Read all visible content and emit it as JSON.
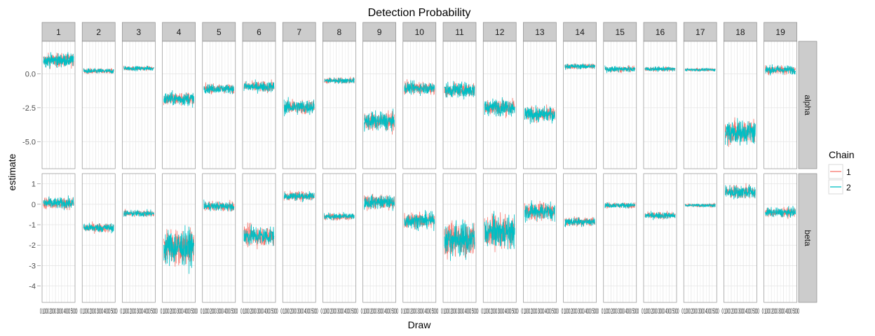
{
  "chart_data": {
    "type": "line",
    "title": "Detection Probability",
    "xlabel": "Draw",
    "ylabel": "estimate",
    "facet_cols": [
      "1",
      "2",
      "3",
      "4",
      "5",
      "6",
      "7",
      "8",
      "9",
      "10",
      "11",
      "12",
      "13",
      "14",
      "15",
      "16",
      "17",
      "18",
      "19"
    ],
    "facet_rows": [
      "alpha",
      "beta"
    ],
    "x_tick_text": "0 1000 2000 3000 4000 5000",
    "rows": [
      {
        "name": "alpha",
        "ylim": [
          -7.0,
          2.4
        ],
        "yticks": [
          -5.0,
          -2.5,
          0.0
        ],
        "ytick_labels": [
          "-5.0",
          "-2.5",
          "0.0"
        ],
        "mean": [
          1.0,
          0.2,
          0.4,
          -1.85,
          -1.1,
          -0.95,
          -2.45,
          -0.5,
          -3.5,
          -1.05,
          -1.2,
          -2.45,
          -3.0,
          0.55,
          0.35,
          0.35,
          0.3,
          -4.3,
          0.3
        ],
        "spread": [
          0.45,
          0.17,
          0.15,
          0.45,
          0.3,
          0.35,
          0.5,
          0.2,
          0.6,
          0.4,
          0.5,
          0.55,
          0.5,
          0.18,
          0.2,
          0.15,
          0.1,
          0.8,
          0.3
        ]
      },
      {
        "name": "beta",
        "ylim": [
          -4.8,
          1.5
        ],
        "yticks": [
          -4,
          -3,
          -2,
          -1,
          0,
          1
        ],
        "ytick_labels": [
          "-4",
          "-3",
          "-2",
          "-1",
          "0",
          "1"
        ],
        "mean": [
          0.05,
          -1.15,
          -0.45,
          -2.1,
          -0.1,
          -1.55,
          0.4,
          -0.6,
          0.1,
          -0.8,
          -1.7,
          -1.35,
          -0.35,
          -0.85,
          -0.05,
          -0.55,
          -0.05,
          0.6,
          -0.4
        ],
        "spread": [
          0.25,
          0.2,
          0.15,
          0.8,
          0.2,
          0.45,
          0.2,
          0.15,
          0.3,
          0.35,
          0.8,
          0.7,
          0.4,
          0.2,
          0.12,
          0.15,
          0.08,
          0.3,
          0.2
        ]
      }
    ],
    "series": [
      {
        "name": "1",
        "color": "#F8766D"
      },
      {
        "name": "2",
        "color": "#00BFC4"
      }
    ],
    "legend": {
      "title": "Chain",
      "position": "right"
    },
    "grid": true
  }
}
